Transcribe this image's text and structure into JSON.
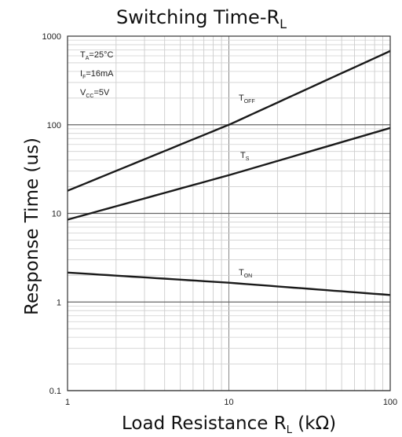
{
  "chart_data": {
    "type": "line",
    "title": "Switching Time-RL",
    "xlabel": "Load Resistance RL (kΩ)",
    "ylabel": "Response Time (us)",
    "x_scale": "log",
    "y_scale": "log",
    "xlim": [
      1,
      100
    ],
    "ylim": [
      0.1,
      1000
    ],
    "x_ticks": [
      "1",
      "10",
      "100"
    ],
    "y_ticks": [
      "0.1",
      "1",
      "10",
      "100",
      "1000"
    ],
    "grid": true,
    "conditions": [
      "TA=25°C",
      "IF=16mA",
      "VCC=5V"
    ],
    "series": [
      {
        "name": "TOFF",
        "x": [
          1,
          10,
          100
        ],
        "y": [
          18,
          100,
          680
        ]
      },
      {
        "name": "TS",
        "x": [
          1,
          10,
          100
        ],
        "y": [
          8.5,
          27,
          92
        ]
      },
      {
        "name": "TON",
        "x": [
          1,
          10,
          100
        ],
        "y": [
          2.15,
          1.65,
          1.2
        ]
      }
    ]
  }
}
